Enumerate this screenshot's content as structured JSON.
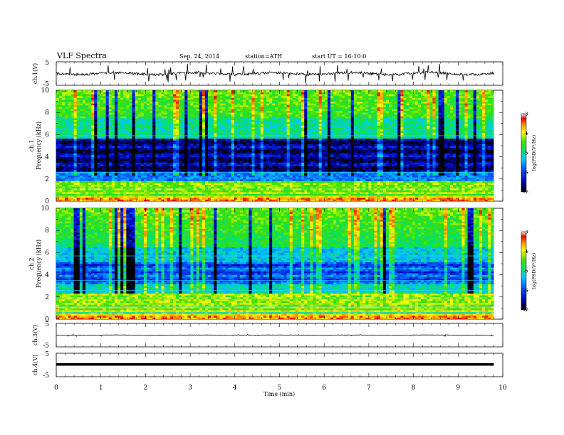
{
  "header": {
    "title": "VLF Spectra",
    "date": "Sep. 24, 2014",
    "station": "station=ATH",
    "start": "start UT =  16:10:0"
  },
  "chart_data": [
    {
      "type": "line",
      "panel": "ch1-waveform",
      "ylabel": "ch.1(V)",
      "ylim": [
        -5,
        5
      ],
      "yticks": [
        "5",
        "-5"
      ],
      "series": [
        {
          "values_description_free": true
        }
      ]
    },
    {
      "type": "heatmap",
      "panel": "ch1-spectrogram",
      "ylabel_line1": "ch.1",
      "ylabel_line2": "Frequency (kHz)",
      "ylim": [
        0,
        10
      ],
      "yticks": [
        "0",
        "2",
        "4",
        "6",
        "8",
        "10"
      ],
      "colorbar": {
        "label": "log(PSD(V²/Hz)",
        "range": [
          -7,
          -3
        ],
        "ticks": [
          "-3",
          "-4",
          "-5",
          "-6",
          "-7"
        ]
      }
    },
    {
      "type": "heatmap",
      "panel": "ch2-spectrogram",
      "ylabel_line1": "ch.2",
      "ylabel_line2": "Frequency (kHz)",
      "ylim": [
        0,
        10
      ],
      "yticks": [
        "0",
        "2",
        "4",
        "6",
        "8",
        "10"
      ],
      "colorbar": {
        "label": "log(PSD(V²/Hz)",
        "range": [
          -7,
          -3
        ],
        "ticks": [
          "-3",
          "-4",
          "-5",
          "-6",
          "-7"
        ]
      }
    },
    {
      "type": "line",
      "panel": "ch3-waveform",
      "ylabel": "ch.3(V)",
      "ylim": [
        -5,
        5
      ],
      "yticks": [
        "5",
        "-5"
      ]
    },
    {
      "type": "line",
      "panel": "ch4-waveform",
      "ylabel": "ch.4(V)",
      "ylim": [
        -5,
        5
      ],
      "yticks": [
        "5",
        "-5"
      ]
    }
  ],
  "xaxis": {
    "label": "Time (min)",
    "range": [
      0,
      10
    ],
    "ticks": [
      "0",
      "1",
      "2",
      "3",
      "4",
      "5",
      "6",
      "7",
      "8",
      "9",
      "10"
    ],
    "data_end": 9.8
  }
}
